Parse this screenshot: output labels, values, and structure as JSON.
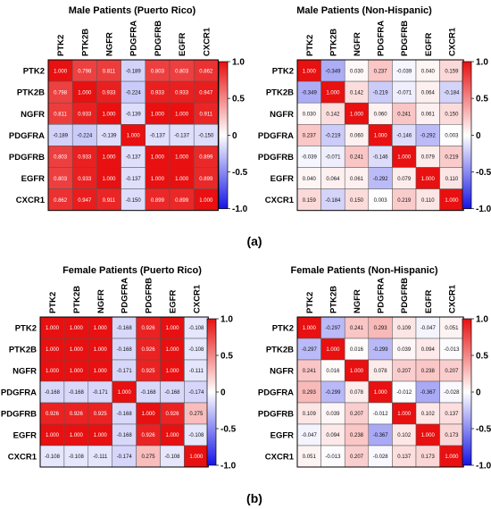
{
  "figure": {
    "panel_labels": [
      "(a)",
      "(b)"
    ]
  },
  "color_scale": {
    "min": -1.0,
    "max": 1.0,
    "negative_color": "#1515e6",
    "neutral_color": "#ffffff",
    "positive_color": "#e81010",
    "tick_labels": [
      "1.0",
      "0.5",
      "0",
      "-0.5",
      "-1.0"
    ],
    "tick_values": [
      1.0,
      0.5,
      0,
      -0.5,
      -1.0
    ]
  },
  "chart_data": [
    {
      "type": "heatmap",
      "title": "Male Patients (Puerto Rico)",
      "labels": [
        "PTK2",
        "PTK2B",
        "NGFR",
        "PDGFRA",
        "PDGFRB",
        "EGFR",
        "CXCR1"
      ],
      "values": [
        [
          1.0,
          0.798,
          0.811,
          -0.189,
          0.803,
          0.803,
          0.862
        ],
        [
          0.798,
          1.0,
          0.933,
          -0.224,
          0.933,
          0.933,
          0.947
        ],
        [
          0.811,
          0.933,
          1.0,
          -0.139,
          1.0,
          1.0,
          0.911
        ],
        [
          -0.189,
          -0.224,
          -0.139,
          1.0,
          -0.137,
          -0.137,
          -0.15
        ],
        [
          0.803,
          0.933,
          1.0,
          -0.137,
          1.0,
          1.0,
          0.899
        ],
        [
          0.803,
          0.933,
          1.0,
          -0.137,
          1.0,
          1.0,
          0.899
        ],
        [
          0.862,
          0.947,
          0.911,
          -0.15,
          0.899,
          0.899,
          1.0
        ]
      ]
    },
    {
      "type": "heatmap",
      "title": "Male Patients (Non-Hispanic)",
      "labels": [
        "PTK2",
        "PTK2B",
        "NGFR",
        "PDGFRA",
        "PDGFRB",
        "EGFR",
        "CXCR1"
      ],
      "values": [
        [
          1.0,
          -0.349,
          0.03,
          0.237,
          -0.039,
          0.04,
          0.159
        ],
        [
          -0.349,
          1.0,
          0.142,
          -0.219,
          -0.071,
          0.064,
          -0.184
        ],
        [
          0.03,
          0.142,
          1.0,
          0.06,
          0.241,
          0.061,
          0.15
        ],
        [
          0.237,
          -0.219,
          0.06,
          1.0,
          -0.146,
          -0.292,
          0.003
        ],
        [
          -0.039,
          -0.071,
          0.241,
          -0.146,
          1.0,
          0.079,
          0.219
        ],
        [
          0.04,
          0.064,
          0.061,
          -0.292,
          0.079,
          1.0,
          0.11
        ],
        [
          0.159,
          -0.184,
          0.15,
          0.003,
          0.219,
          0.11,
          1.0
        ]
      ]
    },
    {
      "type": "heatmap",
      "title": "Female Patients (Puerto Rico)",
      "labels": [
        "PTK2",
        "PTK2B",
        "NGFR",
        "PDGFRA",
        "PDGFRB",
        "EGFR",
        "CXCR1"
      ],
      "values": [
        [
          1.0,
          1.0,
          1.0,
          -0.168,
          0.926,
          1.0,
          -0.108
        ],
        [
          1.0,
          1.0,
          1.0,
          -0.168,
          0.926,
          1.0,
          -0.108
        ],
        [
          1.0,
          1.0,
          1.0,
          -0.171,
          0.925,
          1.0,
          -0.111
        ],
        [
          -0.168,
          -0.168,
          -0.171,
          1.0,
          -0.168,
          -0.168,
          -0.174
        ],
        [
          0.926,
          0.926,
          0.925,
          -0.168,
          1.0,
          0.926,
          0.275
        ],
        [
          1.0,
          1.0,
          1.0,
          -0.168,
          0.926,
          1.0,
          -0.108
        ],
        [
          -0.108,
          -0.108,
          -0.111,
          -0.174,
          0.275,
          -0.108,
          1.0
        ]
      ]
    },
    {
      "type": "heatmap",
      "title": "Female Patients (Non-Hispanic)",
      "labels": [
        "PTK2",
        "PTK2B",
        "NGFR",
        "PDGFRA",
        "PDGFRB",
        "EGFR",
        "CXCR1"
      ],
      "values": [
        [
          1.0,
          -0.297,
          0.241,
          0.293,
          0.109,
          -0.047,
          0.051
        ],
        [
          -0.297,
          1.0,
          0.016,
          -0.299,
          0.039,
          0.094,
          -0.013
        ],
        [
          0.241,
          0.016,
          1.0,
          0.078,
          0.207,
          0.238,
          0.207
        ],
        [
          0.293,
          -0.299,
          0.078,
          1.0,
          -0.012,
          -0.367,
          -0.028
        ],
        [
          0.109,
          0.039,
          0.207,
          -0.012,
          1.0,
          0.102,
          0.137
        ],
        [
          -0.047,
          0.094,
          0.238,
          -0.367,
          0.102,
          1.0,
          0.173
        ],
        [
          0.051,
          -0.013,
          0.207,
          -0.028,
          0.137,
          0.173,
          1.0
        ]
      ]
    }
  ]
}
